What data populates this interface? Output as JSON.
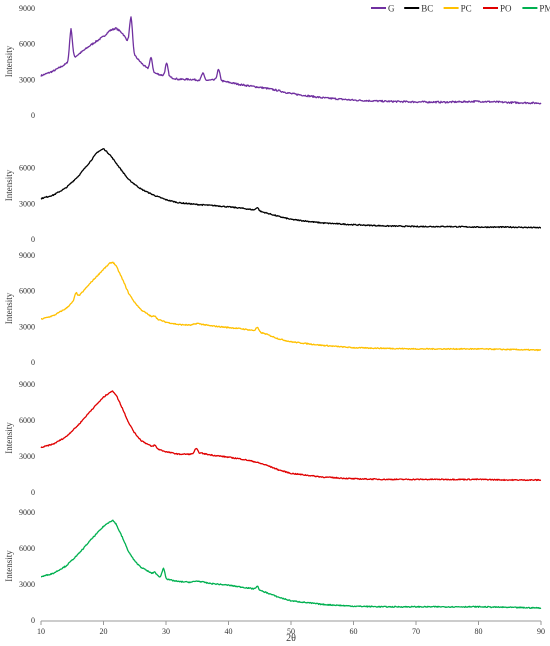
{
  "chart_data": {
    "type": "line",
    "layout": "stacked-panels",
    "xlabel": "2θ",
    "ylabel": "Intensity",
    "xlim": [
      10,
      90
    ],
    "x_ticks": [
      "10",
      "20",
      "30",
      "40",
      "50",
      "60",
      "70",
      "80",
      "90"
    ],
    "ylim": [
      0,
      9000
    ],
    "legend_position": "top-right",
    "series": [
      {
        "name": "G",
        "color": "#7030a0",
        "y_ticks": [
          "0",
          "3000",
          "6000",
          "9000"
        ],
        "x": [
          10,
          12,
          14,
          16,
          18,
          20,
          21,
          22,
          23,
          24,
          25,
          26,
          27,
          28,
          30,
          32,
          34,
          36,
          38,
          40,
          42,
          44,
          46,
          48,
          50,
          55,
          60,
          65,
          70,
          75,
          80,
          85,
          90
        ],
        "y": [
          3300,
          3700,
          4300,
          5100,
          5900,
          6600,
          7100,
          7300,
          6900,
          6100,
          5000,
          4400,
          3900,
          3550,
          3250,
          3000,
          3000,
          2900,
          2950,
          2750,
          2550,
          2400,
          2250,
          2050,
          1800,
          1450,
          1250,
          1150,
          1100,
          1080,
          1150,
          1050,
          1000
        ],
        "peaks": [
          {
            "x": 14.8,
            "y": 7200
          },
          {
            "x": 24.4,
            "y": 8200
          },
          {
            "x": 27.6,
            "y": 4800
          },
          {
            "x": 30.1,
            "y": 4300
          },
          {
            "x": 35.9,
            "y": 3500
          },
          {
            "x": 38.4,
            "y": 3800
          }
        ]
      },
      {
        "name": "BC",
        "color": "#000000",
        "y_ticks": [
          "0",
          "3000",
          "6000"
        ],
        "x": [
          10,
          12,
          14,
          16,
          18,
          19,
          20,
          21,
          22,
          23,
          24,
          26,
          28,
          30,
          32,
          35,
          38,
          40,
          42,
          44,
          46,
          48,
          50,
          55,
          60,
          65,
          70,
          75,
          80,
          85,
          90
        ],
        "y": [
          3400,
          3700,
          4300,
          5300,
          6600,
          7300,
          7600,
          7100,
          6400,
          5700,
          5000,
          4200,
          3700,
          3300,
          3050,
          2900,
          2800,
          2700,
          2600,
          2450,
          2200,
          1900,
          1650,
          1350,
          1200,
          1100,
          1050,
          1050,
          1000,
          1000,
          950
        ],
        "peaks": [
          {
            "x": 44.6,
            "y": 2650
          }
        ]
      },
      {
        "name": "PC",
        "color": "#ffc000",
        "y_ticks": [
          "0",
          "3000",
          "6000",
          "9000"
        ],
        "x": [
          10,
          12,
          14,
          16,
          18,
          20,
          21,
          21.5,
          22,
          23,
          24,
          25,
          26,
          28,
          30,
          32,
          34,
          35,
          37,
          40,
          42,
          44,
          46,
          48,
          50,
          55,
          60,
          65,
          70,
          75,
          80,
          85,
          90
        ],
        "y": [
          3600,
          3900,
          4500,
          5500,
          6700,
          7800,
          8300,
          8400,
          8100,
          7000,
          5800,
          5000,
          4400,
          3700,
          3350,
          3150,
          3100,
          3250,
          3050,
          2900,
          2800,
          2650,
          2350,
          1950,
          1700,
          1400,
          1200,
          1150,
          1100,
          1100,
          1100,
          1050,
          1000
        ],
        "peaks": [
          {
            "x": 15.6,
            "y": 5800
          },
          {
            "x": 28.2,
            "y": 3900
          },
          {
            "x": 44.6,
            "y": 2900
          }
        ]
      },
      {
        "name": "PO",
        "color": "#e00000",
        "y_ticks": [
          "0",
          "3000",
          "6000",
          "9000"
        ],
        "x": [
          10,
          12,
          14,
          16,
          18,
          20,
          21,
          21.5,
          22,
          23,
          24,
          25,
          26,
          28,
          30,
          32,
          34,
          35,
          37,
          40,
          42,
          44,
          46,
          48,
          50,
          55,
          60,
          65,
          70,
          75,
          80,
          85,
          90
        ],
        "y": [
          3700,
          4000,
          4600,
          5600,
          6800,
          7900,
          8300,
          8400,
          8100,
          7000,
          5800,
          4900,
          4300,
          3700,
          3350,
          3150,
          3150,
          3300,
          3100,
          2900,
          2750,
          2550,
          2250,
          1850,
          1550,
          1250,
          1100,
          1050,
          1050,
          1050,
          1050,
          1000,
          1000
        ],
        "peaks": [
          {
            "x": 28.2,
            "y": 3900
          },
          {
            "x": 34.8,
            "y": 3600
          }
        ]
      },
      {
        "name": "PM",
        "color": "#00b050",
        "y_ticks": [
          "0",
          "3000",
          "6000",
          "9000"
        ],
        "x": [
          10,
          12,
          14,
          16,
          18,
          20,
          21,
          21.5,
          22,
          23,
          24,
          25,
          26,
          28,
          30,
          32,
          34,
          35,
          37,
          40,
          42,
          44,
          46,
          48,
          50,
          55,
          60,
          65,
          70,
          75,
          80,
          85,
          90
        ],
        "y": [
          3600,
          3900,
          4500,
          5500,
          6700,
          7800,
          8200,
          8300,
          8000,
          6900,
          5700,
          4900,
          4400,
          3800,
          3400,
          3200,
          3150,
          3250,
          3050,
          2900,
          2750,
          2600,
          2300,
          1900,
          1600,
          1300,
          1150,
          1100,
          1100,
          1100,
          1100,
          1050,
          1000
        ],
        "peaks": [
          {
            "x": 28.2,
            "y": 4000
          },
          {
            "x": 29.6,
            "y": 4300
          },
          {
            "x": 44.6,
            "y": 2800
          }
        ]
      }
    ]
  }
}
